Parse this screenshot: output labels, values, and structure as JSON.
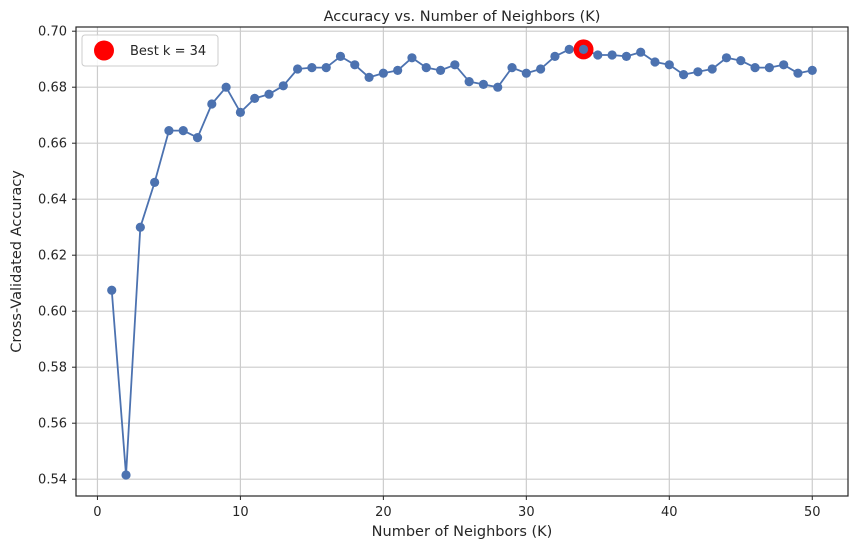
{
  "chart_data": {
    "type": "line",
    "title": "Accuracy vs. Number of Neighbors (K)",
    "xlabel": "Number of Neighbors (K)",
    "ylabel": "Cross-Validated Accuracy",
    "xlim": [
      -1.5,
      52.5
    ],
    "ylim": [
      0.534,
      0.7015
    ],
    "xticks": [
      0,
      10,
      20,
      30,
      40,
      50
    ],
    "yticks": [
      0.54,
      0.56,
      0.58,
      0.6,
      0.62,
      0.64,
      0.66,
      0.68,
      0.7
    ],
    "ytick_labels": [
      "0.54",
      "0.56",
      "0.58",
      "0.60",
      "0.62",
      "0.64",
      "0.66",
      "0.68",
      "0.70"
    ],
    "grid": true,
    "legend_position": "top-left",
    "series": [
      {
        "color": "#4c72b0",
        "x": [
          1,
          2,
          3,
          4,
          5,
          6,
          7,
          8,
          9,
          10,
          11,
          12,
          13,
          14,
          15,
          16,
          17,
          18,
          19,
          20,
          21,
          22,
          23,
          24,
          25,
          26,
          27,
          28,
          29,
          30,
          31,
          32,
          33,
          34,
          35,
          36,
          37,
          38,
          39,
          40,
          41,
          42,
          43,
          44,
          45,
          46,
          47,
          48,
          49,
          50
        ],
        "y": [
          0.6075,
          0.5415,
          0.63,
          0.646,
          0.6645,
          0.6645,
          0.662,
          0.674,
          0.68,
          0.671,
          0.676,
          0.6775,
          0.6805,
          0.6865,
          0.687,
          0.687,
          0.691,
          0.688,
          0.6835,
          0.685,
          0.686,
          0.6905,
          0.687,
          0.686,
          0.688,
          0.682,
          0.681,
          0.68,
          0.687,
          0.685,
          0.6865,
          0.691,
          0.6935,
          0.6935,
          0.6915,
          0.6915,
          0.691,
          0.6925,
          0.689,
          0.688,
          0.6845,
          0.6855,
          0.6865,
          0.6905,
          0.6895,
          0.687,
          0.687,
          0.688,
          0.685,
          0.686
        ]
      }
    ],
    "highlight": {
      "name": "Best k = 34",
      "x": 34,
      "y": 0.6935,
      "color": "#ff0000"
    }
  }
}
